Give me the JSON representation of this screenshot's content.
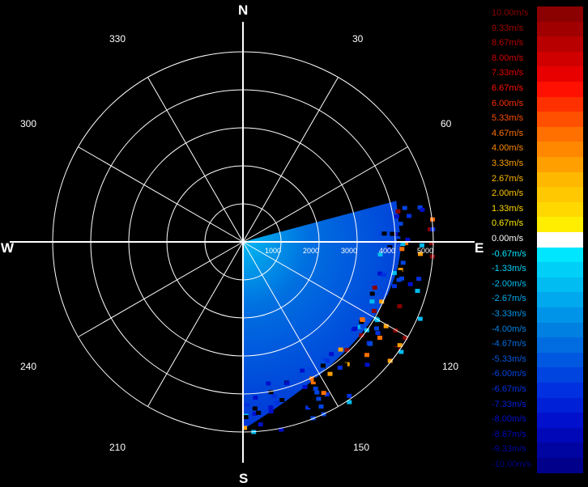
{
  "cardinals": {
    "north": "N",
    "south": "S",
    "east": "E",
    "west": "W"
  },
  "azimuth_labels": {
    "a30": "30",
    "a60": "60",
    "a120": "120",
    "a150": "150",
    "a210": "210",
    "a240": "240",
    "a300": "300",
    "a330": "330"
  },
  "range_labels": [
    "1000",
    "2000",
    "3000",
    "4000",
    "5000"
  ],
  "legend": {
    "rows": [
      {
        "label": "10.00m/s",
        "color": "#8b0000"
      },
      {
        "label": "9.33m/s",
        "color": "#a00000"
      },
      {
        "label": "8.67m/s",
        "color": "#b80000"
      },
      {
        "label": "8.00m/s",
        "color": "#d00000"
      },
      {
        "label": "7.33m/s",
        "color": "#e80000"
      },
      {
        "label": "6.67m/s",
        "color": "#ff1000"
      },
      {
        "label": "6.00m/s",
        "color": "#ff3000"
      },
      {
        "label": "5.33m/s",
        "color": "#ff5000"
      },
      {
        "label": "4.67m/s",
        "color": "#ff7000"
      },
      {
        "label": "4.00m/s",
        "color": "#ff8800"
      },
      {
        "label": "3.33m/s",
        "color": "#ffa000"
      },
      {
        "label": "2.67m/s",
        "color": "#ffb800"
      },
      {
        "label": "2.00m/s",
        "color": "#ffc800"
      },
      {
        "label": "1.33m/s",
        "color": "#ffd800"
      },
      {
        "label": "0.67m/s",
        "color": "#ffee00"
      },
      {
        "label": "0.00m/s",
        "color": "#ffffff"
      },
      {
        "label": "-0.67m/s",
        "color": "#00e6ff"
      },
      {
        "label": "-1.33m/s",
        "color": "#00d0f8"
      },
      {
        "label": "-2.00m/s",
        "color": "#00bcf0"
      },
      {
        "label": "-2.67m/s",
        "color": "#00a8ee"
      },
      {
        "label": "-3.33m/s",
        "color": "#0094e8"
      },
      {
        "label": "-4.00m/s",
        "color": "#0080e0"
      },
      {
        "label": "-4.67m/s",
        "color": "#006ce0"
      },
      {
        "label": "-5.33m/s",
        "color": "#0058e0"
      },
      {
        "label": "-6.00m/s",
        "color": "#0044e0"
      },
      {
        "label": "-6.67m/s",
        "color": "#0030e0"
      },
      {
        "label": "-7.33m/s",
        "color": "#0020d8"
      },
      {
        "label": "-8.00m/s",
        "color": "#0010cc"
      },
      {
        "label": "-8.67m/s",
        "color": "#0008b8"
      },
      {
        "label": "-9.33m/s",
        "color": "#0004a0"
      },
      {
        "label": "-10.00m/s",
        "color": "#00008b"
      }
    ]
  }
}
